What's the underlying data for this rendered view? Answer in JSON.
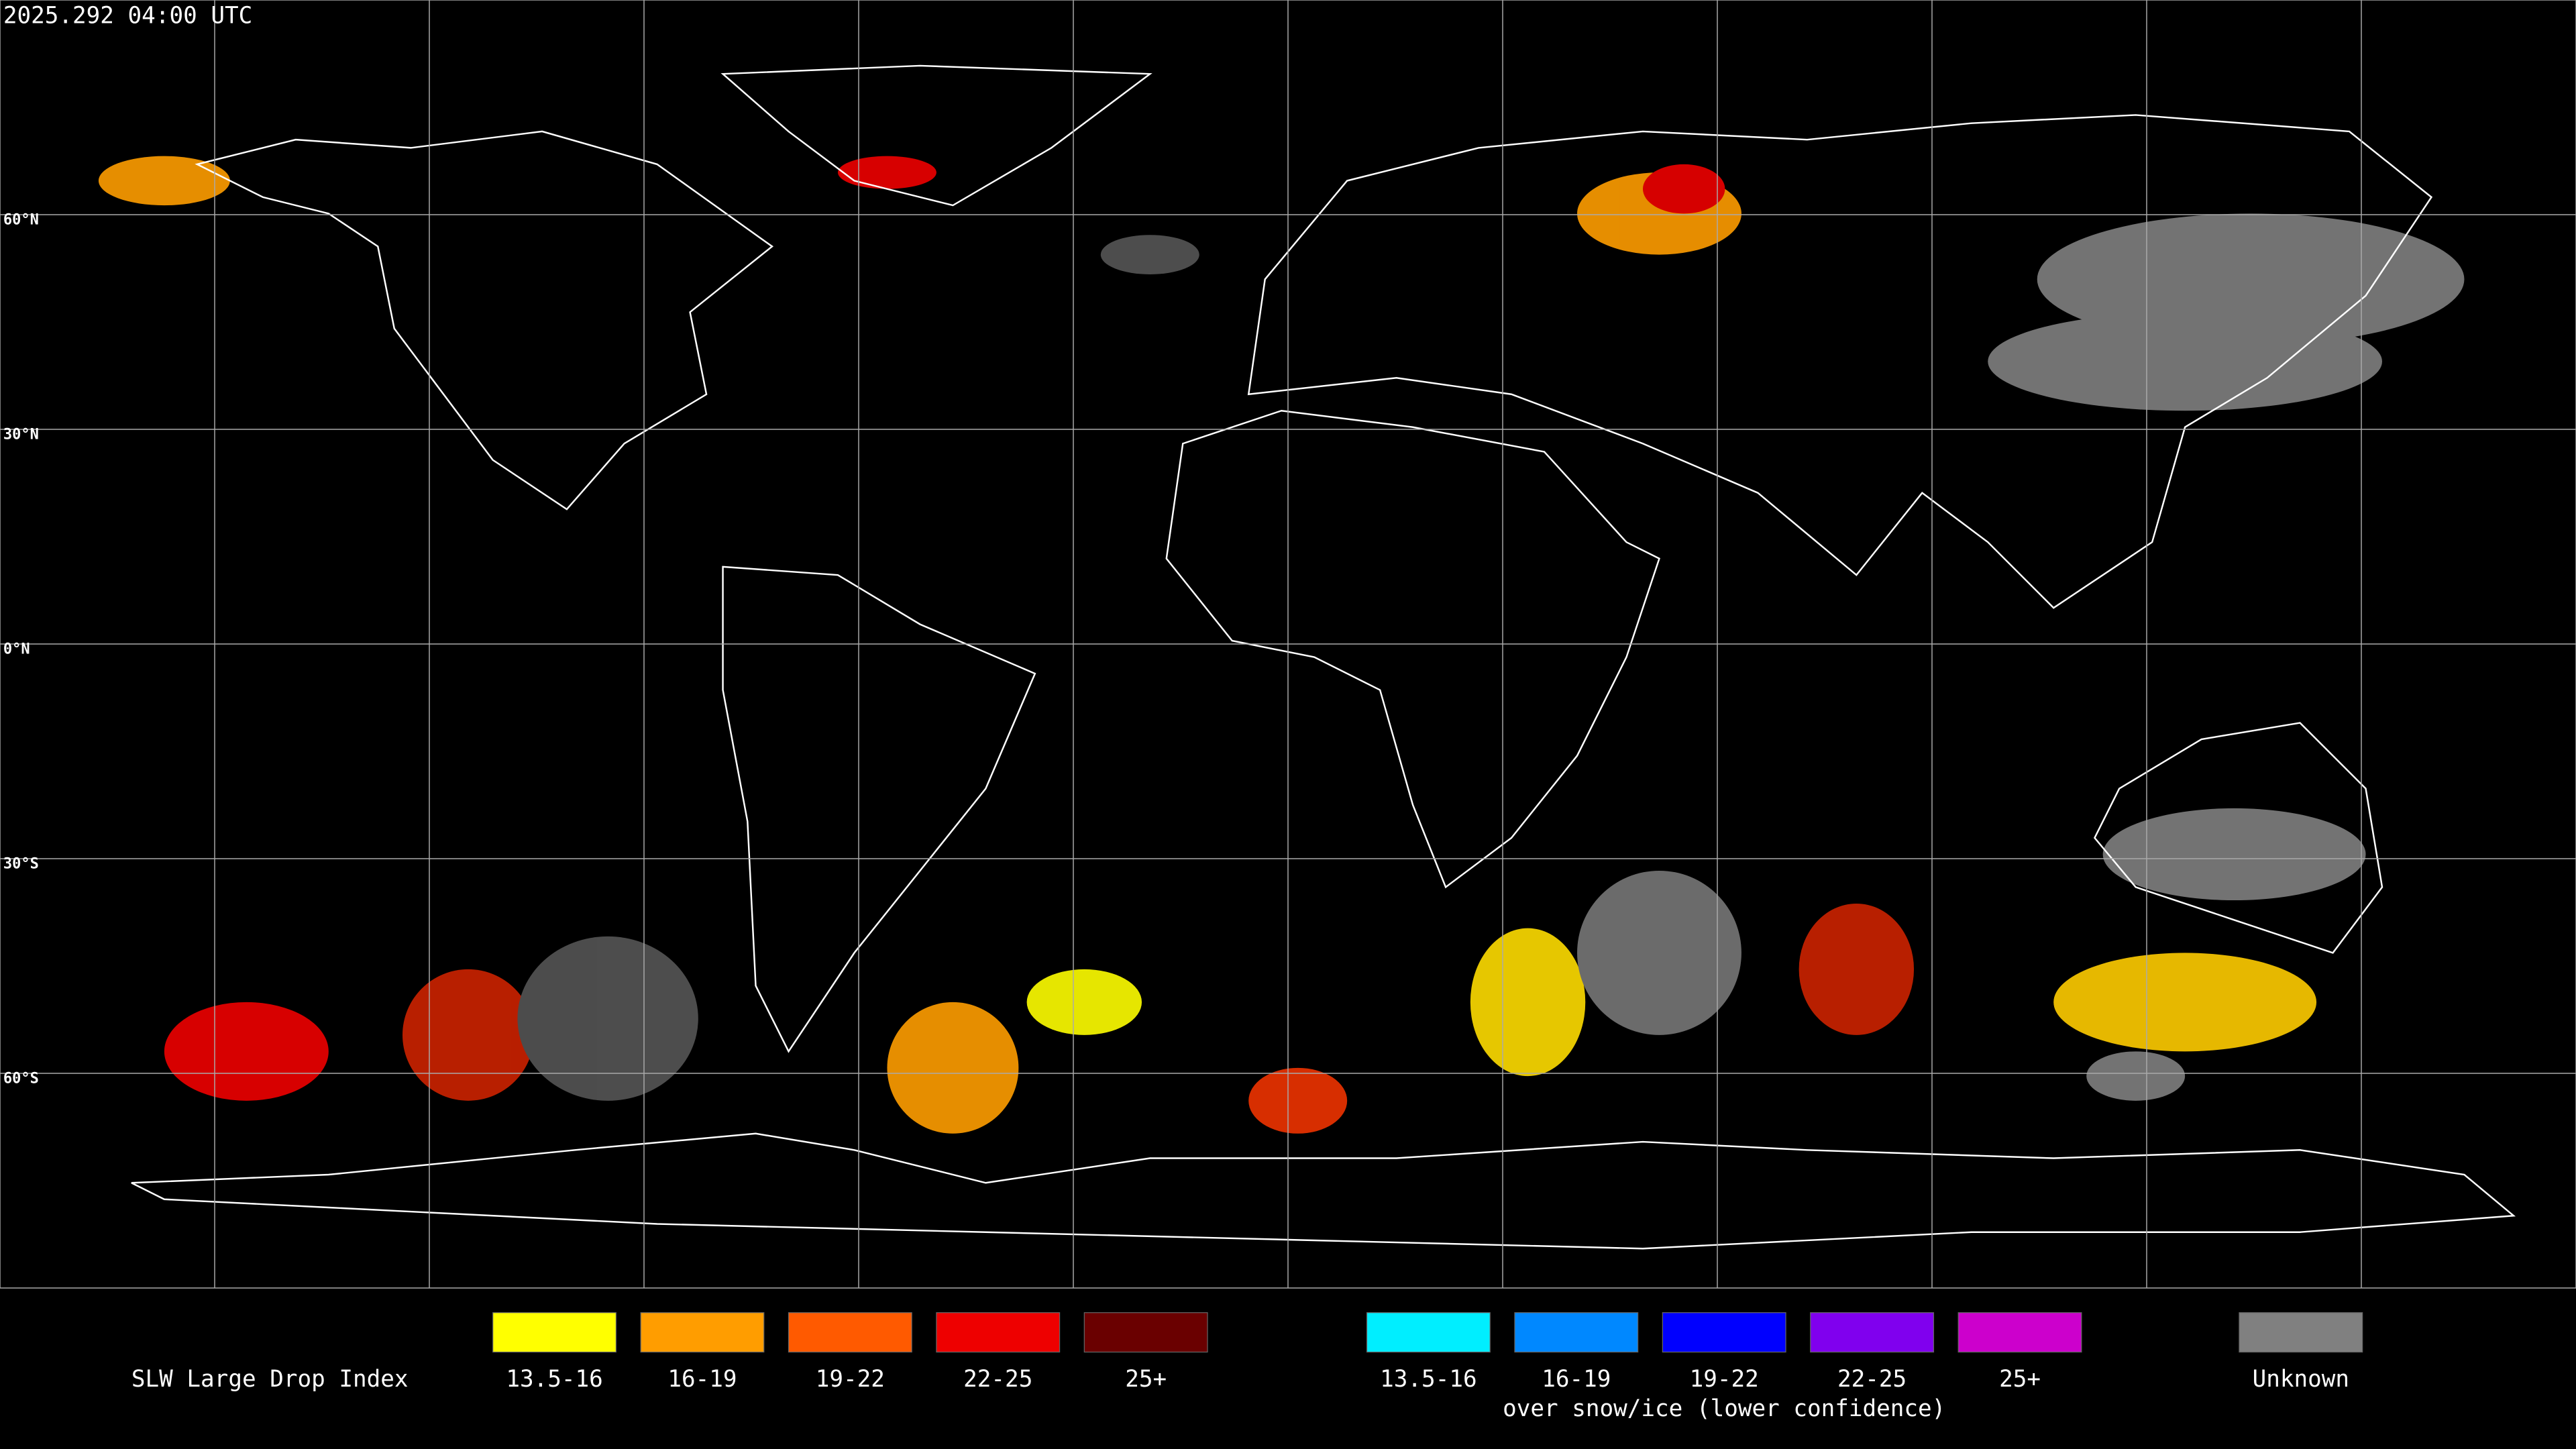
{
  "header": {
    "timestamp": "2025.292 04:00 UTC"
  },
  "grid": {
    "lat_labels": [
      "60°N",
      "30°N",
      "0°N",
      "30°S",
      "60°S"
    ]
  },
  "legend": {
    "title": "SLW Large Drop Index",
    "groups": [
      {
        "items": [
          {
            "label": "13.5-16",
            "color": "#ffff00"
          },
          {
            "label": "16-19",
            "color": "#ff9d00"
          },
          {
            "label": "19-22",
            "color": "#ff5a00"
          },
          {
            "label": "22-25",
            "color": "#ee0000"
          },
          {
            "label": "25+",
            "color": "#6a0000"
          }
        ]
      },
      {
        "items": [
          {
            "label": "13.5-16",
            "color": "#00eeff"
          },
          {
            "label": "16-19",
            "color": "#0088ff"
          },
          {
            "label": "19-22",
            "color": "#0000ff"
          },
          {
            "label": "22-25",
            "color": "#8000ee"
          },
          {
            "label": "25+",
            "color": "#cc00cc"
          }
        ],
        "caption": "over snow/ice (lower confidence)"
      },
      {
        "items": [
          {
            "label": "Unknown",
            "color": "#808080"
          }
        ]
      }
    ]
  }
}
